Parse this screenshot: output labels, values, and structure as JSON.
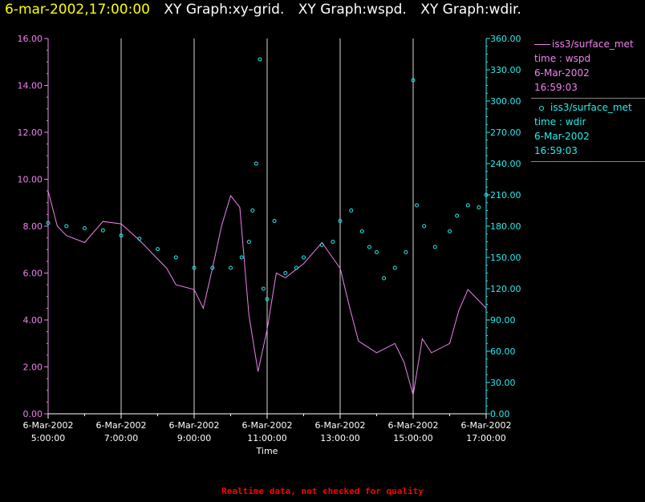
{
  "header": {
    "time": "6-mar-2002,17:00:00",
    "graphs": [
      "XY Graph:xy-grid.",
      "XY Graph:wspd.",
      "XY Graph:wdir."
    ]
  },
  "legend": [
    {
      "series": "iss3/surface_met",
      "field": "time : wspd",
      "date": "6-Mar-2002",
      "time": "16:59:03",
      "color": "#ee82ee",
      "marker": "line"
    },
    {
      "series": "iss3/surface_met",
      "field": "time : wdir",
      "date": "6-Mar-2002",
      "time": "16:59:03",
      "color": "#22eeee",
      "marker": "circle"
    }
  ],
  "footer": "Realtime data, not checked for quality",
  "chart_data": {
    "type": "line",
    "xlabel": "Time",
    "x_ticks": [
      {
        "date": "6-Mar-2002",
        "time": "5:00:00",
        "hour": 5
      },
      {
        "date": "6-Mar-2002",
        "time": "7:00:00",
        "hour": 7
      },
      {
        "date": "6-Mar-2002",
        "time": "9:00:00",
        "hour": 9
      },
      {
        "date": "6-Mar-2002",
        "time": "11:00:00",
        "hour": 11
      },
      {
        "date": "6-Mar-2002",
        "time": "13:00:00",
        "hour": 13
      },
      {
        "date": "6-Mar-2002",
        "time": "15:00:00",
        "hour": 15
      },
      {
        "date": "6-Mar-2002",
        "time": "17:00:00",
        "hour": 17
      }
    ],
    "xlim": [
      5,
      17
    ],
    "grid": "vertical",
    "y_left": {
      "ylim": [
        0,
        16
      ],
      "ticks": [
        "0.00",
        "2.00",
        "4.00",
        "6.00",
        "8.00",
        "10.00",
        "12.00",
        "14.00",
        "16.00"
      ],
      "color": "#ee82ee"
    },
    "y_right": {
      "ylim": [
        0,
        360
      ],
      "ticks": [
        "0.00",
        "30.00",
        "60.00",
        "90.00",
        "120.00",
        "150.00",
        "180.00",
        "210.00",
        "240.00",
        "270.00",
        "300.00",
        "330.00",
        "360.00"
      ],
      "color": "#22eeee"
    },
    "series": [
      {
        "name": "time : wspd",
        "axis": "left",
        "style": "line",
        "color": "#ee82ee",
        "points": [
          [
            5.0,
            9.5
          ],
          [
            5.25,
            8.0
          ],
          [
            5.5,
            7.6
          ],
          [
            6.0,
            7.3
          ],
          [
            6.5,
            8.2
          ],
          [
            7.0,
            8.1
          ],
          [
            7.5,
            7.4
          ],
          [
            8.0,
            6.6
          ],
          [
            8.25,
            6.2
          ],
          [
            8.5,
            5.5
          ],
          [
            9.0,
            5.3
          ],
          [
            9.25,
            4.5
          ],
          [
            9.5,
            6.2
          ],
          [
            9.75,
            8.0
          ],
          [
            10.0,
            9.3
          ],
          [
            10.25,
            8.8
          ],
          [
            10.5,
            4.2
          ],
          [
            10.75,
            1.8
          ],
          [
            11.0,
            3.6
          ],
          [
            11.25,
            6.0
          ],
          [
            11.5,
            5.8
          ],
          [
            12.0,
            6.4
          ],
          [
            12.5,
            7.3
          ],
          [
            13.0,
            6.2
          ],
          [
            13.25,
            4.6
          ],
          [
            13.5,
            3.1
          ],
          [
            14.0,
            2.6
          ],
          [
            14.5,
            3.0
          ],
          [
            14.75,
            2.2
          ],
          [
            15.0,
            0.8
          ],
          [
            15.25,
            3.2
          ],
          [
            15.5,
            2.6
          ],
          [
            16.0,
            3.0
          ],
          [
            16.25,
            4.4
          ],
          [
            16.5,
            5.3
          ],
          [
            17.0,
            4.5
          ]
        ]
      },
      {
        "name": "time : wdir",
        "axis": "right",
        "style": "scatter",
        "color": "#22eeee",
        "points": [
          [
            5.0,
            183
          ],
          [
            5.5,
            180
          ],
          [
            6.0,
            178
          ],
          [
            6.5,
            176
          ],
          [
            7.0,
            171
          ],
          [
            7.5,
            168
          ],
          [
            8.0,
            158
          ],
          [
            8.5,
            150
          ],
          [
            9.0,
            140
          ],
          [
            9.5,
            140
          ],
          [
            10.0,
            140
          ],
          [
            10.3,
            150
          ],
          [
            10.5,
            165
          ],
          [
            10.6,
            195
          ],
          [
            10.7,
            240
          ],
          [
            10.8,
            340
          ],
          [
            10.9,
            120
          ],
          [
            11.0,
            110
          ],
          [
            11.2,
            185
          ],
          [
            11.5,
            135
          ],
          [
            11.8,
            140
          ],
          [
            12.0,
            150
          ],
          [
            12.5,
            162
          ],
          [
            12.8,
            165
          ],
          [
            13.0,
            185
          ],
          [
            13.3,
            195
          ],
          [
            13.6,
            175
          ],
          [
            13.8,
            160
          ],
          [
            14.0,
            155
          ],
          [
            14.2,
            130
          ],
          [
            14.5,
            140
          ],
          [
            14.8,
            155
          ],
          [
            15.0,
            320
          ],
          [
            15.1,
            200
          ],
          [
            15.3,
            180
          ],
          [
            15.6,
            160
          ],
          [
            16.0,
            175
          ],
          [
            16.2,
            190
          ],
          [
            16.5,
            200
          ],
          [
            16.8,
            198
          ],
          [
            17.0,
            210
          ]
        ]
      }
    ]
  }
}
